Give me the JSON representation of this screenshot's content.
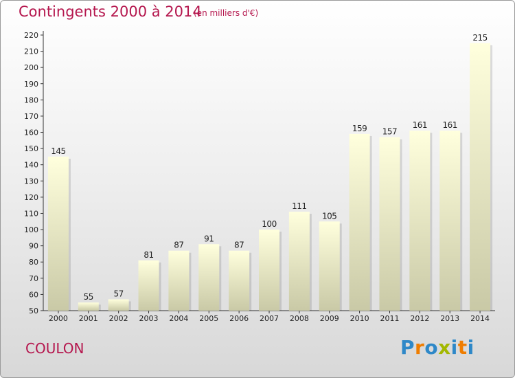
{
  "header": {
    "title": "Contingents 2000 à 2014",
    "subtitle": "(en milliers d'€)"
  },
  "footer": {
    "town": "COULON",
    "logo_text": "Proxiti"
  },
  "colors": {
    "title": "#b5174e",
    "bar_top": "#ffffdd",
    "bar_bottom": "#c9c9a6",
    "logo_letters": [
      "#2e88c8",
      "#ef7d00",
      "#2e88c8",
      "#a3b800",
      "#2e88c8",
      "#ef7d00",
      "#2e88c8"
    ]
  },
  "chart_data": {
    "type": "bar",
    "categories": [
      "2000",
      "2001",
      "2002",
      "2003",
      "2004",
      "2005",
      "2006",
      "2007",
      "2008",
      "2009",
      "2010",
      "2011",
      "2012",
      "2013",
      "2014"
    ],
    "values": [
      145,
      55,
      57,
      81,
      87,
      91,
      87,
      100,
      111,
      105,
      159,
      157,
      161,
      161,
      215
    ],
    "title": "Contingents 2000 à 2014",
    "subtitle": "(en milliers d'€)",
    "ylim": [
      50,
      220
    ],
    "yticks": [
      50,
      60,
      70,
      80,
      90,
      100,
      110,
      120,
      130,
      140,
      150,
      160,
      170,
      180,
      190,
      200,
      210,
      220
    ],
    "grid": false,
    "data_labels": true
  }
}
